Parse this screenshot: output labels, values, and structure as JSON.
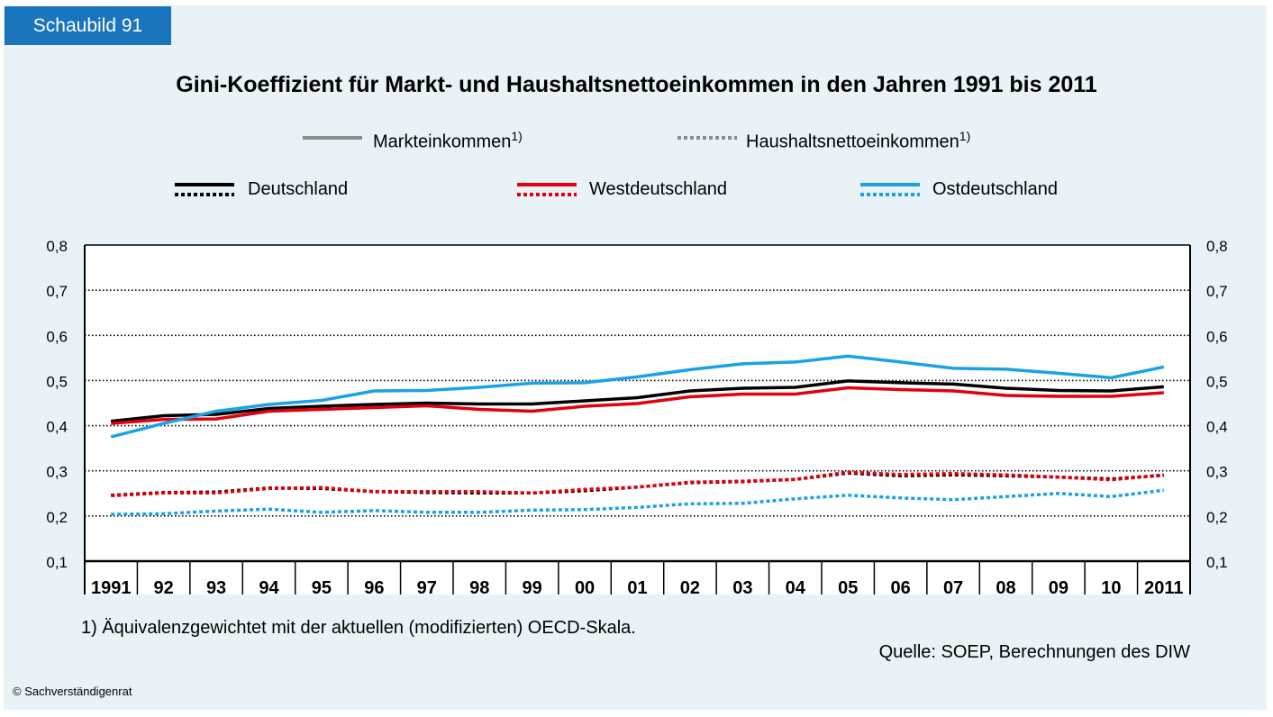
{
  "badge": "Schaubild 91",
  "legend": {
    "type_items": [
      {
        "label": "Markteinkommen",
        "sup": "1)",
        "style": "solid"
      },
      {
        "label": "Haushaltsnettoeinkommen",
        "sup": "1)",
        "style": "dotted"
      }
    ],
    "region_items": [
      {
        "label": "Deutschland",
        "color": "#000000"
      },
      {
        "label": "Westdeutschland",
        "color": "#e3000f"
      },
      {
        "label": "Ostdeutschland",
        "color": "#1ba2e6"
      }
    ]
  },
  "footnote": "1) Äquivalenzgewichtet mit der aktuellen (modifizierten) OECD-Skala.",
  "source": "Quelle: SOEP, Berechnungen des DIW",
  "copyright": "© Sachverständigenrat",
  "chart_data": {
    "type": "line",
    "title": "Gini-Koeffizient für Markt- und Haushaltsnettoeinkommen in den Jahren 1991 bis 2011",
    "categories": [
      "1991",
      "92",
      "93",
      "94",
      "95",
      "96",
      "97",
      "98",
      "99",
      "00",
      "01",
      "02",
      "03",
      "04",
      "05",
      "06",
      "07",
      "08",
      "09",
      "10",
      "2011"
    ],
    "ylim": [
      0.1,
      0.8
    ],
    "yticks": [
      0.1,
      0.2,
      0.3,
      0.4,
      0.5,
      0.6,
      0.7,
      0.8
    ],
    "ytick_labels": [
      "0,1",
      "0,2",
      "0,3",
      "0,4",
      "0,5",
      "0,6",
      "0,7",
      "0,8"
    ],
    "grid": "horizontal dotted",
    "series": [
      {
        "name": "Deutschland Markteinkommen",
        "color": "#000000",
        "style": "solid",
        "values": [
          0.41,
          0.422,
          0.425,
          0.438,
          0.443,
          0.447,
          0.45,
          0.448,
          0.448,
          0.455,
          0.462,
          0.477,
          0.483,
          0.485,
          0.499,
          0.495,
          0.492,
          0.483,
          0.478,
          0.477,
          0.486
        ]
      },
      {
        "name": "Westdeutschland Markteinkommen",
        "color": "#e3000f",
        "style": "solid",
        "values": [
          0.405,
          0.414,
          0.415,
          0.432,
          0.436,
          0.44,
          0.444,
          0.436,
          0.432,
          0.443,
          0.449,
          0.464,
          0.47,
          0.47,
          0.484,
          0.48,
          0.477,
          0.467,
          0.465,
          0.465,
          0.473
        ]
      },
      {
        "name": "Ostdeutschland Markteinkommen",
        "color": "#1ba2e6",
        "style": "solid",
        "values": [
          0.375,
          0.405,
          0.432,
          0.447,
          0.456,
          0.477,
          0.478,
          0.485,
          0.494,
          0.495,
          0.508,
          0.524,
          0.537,
          0.541,
          0.554,
          0.541,
          0.527,
          0.525,
          0.516,
          0.506,
          0.53
        ]
      },
      {
        "name": "Deutschland Haushaltsnettoeinkommen",
        "color": "#000000",
        "style": "dotted",
        "values": [
          0.246,
          0.252,
          0.253,
          0.262,
          0.261,
          0.254,
          0.252,
          0.251,
          0.251,
          0.256,
          0.264,
          0.274,
          0.276,
          0.281,
          0.295,
          0.289,
          0.291,
          0.289,
          0.286,
          0.282,
          0.29
        ]
      },
      {
        "name": "Westdeutschland Haushaltsnettoeinkommen",
        "color": "#e3000f",
        "style": "dotted",
        "values": [
          0.245,
          0.251,
          0.251,
          0.261,
          0.263,
          0.254,
          0.254,
          0.254,
          0.251,
          0.259,
          0.264,
          0.275,
          0.277,
          0.281,
          0.297,
          0.292,
          0.294,
          0.291,
          0.286,
          0.28,
          0.291
        ]
      },
      {
        "name": "Ostdeutschland Haushaltsnettoeinkommen",
        "color": "#1ba2e6",
        "style": "dotted",
        "values": [
          0.204,
          0.205,
          0.211,
          0.215,
          0.208,
          0.212,
          0.208,
          0.208,
          0.213,
          0.214,
          0.219,
          0.227,
          0.228,
          0.238,
          0.246,
          0.24,
          0.236,
          0.243,
          0.25,
          0.243,
          0.257
        ]
      }
    ]
  }
}
